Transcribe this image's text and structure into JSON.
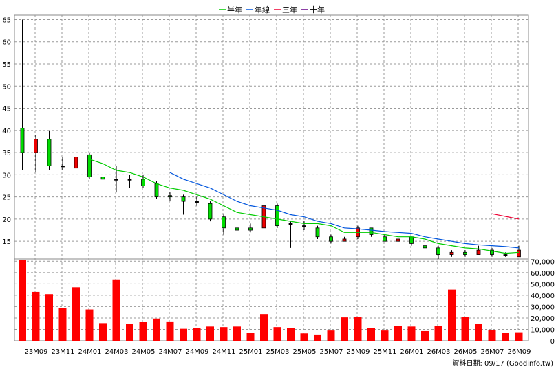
{
  "chart_data": {
    "type": "candlestick",
    "legend": [
      {
        "name": "半年",
        "color": "#00cc00"
      },
      {
        "name": "年線",
        "color": "#0055dd"
      },
      {
        "name": "三年",
        "color": "#ee0033"
      },
      {
        "name": "十年",
        "color": "#660088"
      }
    ],
    "legend_placement": "top-center",
    "grid": true,
    "price_axis": {
      "ticks": [
        65,
        60,
        55,
        50,
        45,
        40,
        35,
        30,
        25,
        20,
        15
      ],
      "range": [
        11,
        66
      ]
    },
    "volume_axis": {
      "ticks": [
        "70,000",
        "60,000",
        "50,000",
        "40,000",
        "30,000",
        "20,000",
        "10,000",
        "0"
      ],
      "range": [
        0,
        72000
      ]
    },
    "x_labels": [
      "23M09",
      "23M11",
      "24M01",
      "24M03",
      "24M05",
      "24M07",
      "24M09",
      "24M11",
      "25M01",
      "25M03",
      "25M05",
      "25M07",
      "25M09",
      "25M11",
      "26M01",
      "26M03",
      "26M05",
      "26M07",
      "26M09"
    ],
    "candles": [
      {
        "o": 35,
        "h": 65,
        "l": 31,
        "c": 40.5
      },
      {
        "o": 38,
        "h": 39,
        "l": 30.5,
        "c": 35
      },
      {
        "o": 32,
        "h": 40,
        "l": 31,
        "c": 38
      },
      {
        "o": 32,
        "h": 34,
        "l": 31,
        "c": 32
      },
      {
        "o": 34,
        "h": 36,
        "l": 31,
        "c": 31.5
      },
      {
        "o": 29.5,
        "h": 35,
        "l": 29,
        "c": 34.5
      },
      {
        "o": 29,
        "h": 30,
        "l": 28.5,
        "c": 29.5
      },
      {
        "o": 29,
        "h": 32,
        "l": 26,
        "c": 29
      },
      {
        "o": 29,
        "h": 30,
        "l": 27,
        "c": 29
      },
      {
        "o": 27.5,
        "h": 30,
        "l": 27,
        "c": 29
      },
      {
        "o": 25,
        "h": 28.5,
        "l": 24.5,
        "c": 28
      },
      {
        "o": 25,
        "h": 26,
        "l": 24,
        "c": 25.3
      },
      {
        "o": 24,
        "h": 25.5,
        "l": 21,
        "c": 25
      },
      {
        "o": 24,
        "h": 25,
        "l": 23,
        "c": 24
      },
      {
        "o": 20,
        "h": 24,
        "l": 19.5,
        "c": 23.5
      },
      {
        "o": 18,
        "h": 21,
        "l": 16.5,
        "c": 20.5
      },
      {
        "o": 17.5,
        "h": 19,
        "l": 17,
        "c": 18
      },
      {
        "o": 17.5,
        "h": 19,
        "l": 17,
        "c": 18
      },
      {
        "o": 23,
        "h": 25,
        "l": 17.5,
        "c": 18
      },
      {
        "o": 18.5,
        "h": 23.5,
        "l": 18,
        "c": 23
      },
      {
        "o": 19,
        "h": 19.5,
        "l": 13.5,
        "c": 19
      },
      {
        "o": 18.5,
        "h": 19.5,
        "l": 17.5,
        "c": 18.5
      },
      {
        "o": 16,
        "h": 18.5,
        "l": 15.5,
        "c": 18
      },
      {
        "o": 15,
        "h": 16.5,
        "l": 14.5,
        "c": 16
      },
      {
        "o": 15.5,
        "h": 16,
        "l": 15,
        "c": 15
      },
      {
        "o": 18,
        "h": 18.5,
        "l": 15.5,
        "c": 16
      },
      {
        "o": 16.5,
        "h": 18,
        "l": 16,
        "c": 18
      },
      {
        "o": 15,
        "h": 16.5,
        "l": 15,
        "c": 16
      },
      {
        "o": 15.5,
        "h": 16.5,
        "l": 14.5,
        "c": 15
      },
      {
        "o": 14.5,
        "h": 16,
        "l": 14,
        "c": 16
      },
      {
        "o": 13.5,
        "h": 14.5,
        "l": 13,
        "c": 14
      },
      {
        "o": 12,
        "h": 14,
        "l": 11,
        "c": 13.5
      },
      {
        "o": 12.5,
        "h": 13,
        "l": 11.5,
        "c": 12
      },
      {
        "o": 12,
        "h": 13,
        "l": 11.5,
        "c": 12.5
      },
      {
        "o": 13,
        "h": 14,
        "l": 12,
        "c": 12
      },
      {
        "o": 12,
        "h": 13.5,
        "l": 11.5,
        "c": 13
      },
      {
        "o": 12,
        "h": 12.5,
        "l": 11.5,
        "c": 12
      },
      {
        "o": 13,
        "h": 14,
        "l": 11.5,
        "c": 11.5
      }
    ],
    "volumes": [
      71000,
      43000,
      41000,
      28500,
      47000,
      27500,
      15500,
      54000,
      15000,
      16500,
      19500,
      17000,
      10500,
      11000,
      12500,
      12000,
      12500,
      7000,
      23500,
      12000,
      11000,
      6500,
      5500,
      9000,
      20500,
      21000,
      11000,
      9000,
      13000,
      12500,
      8500,
      13000,
      45000,
      21000,
      15000,
      9500,
      7000,
      7500
    ],
    "half_year_line": [
      [
        5,
        33.5
      ],
      [
        6,
        32.5
      ],
      [
        7,
        31
      ],
      [
        8,
        30.5
      ],
      [
        9,
        29.5
      ],
      [
        10,
        28
      ],
      [
        11,
        27
      ],
      [
        12,
        26.5
      ],
      [
        13,
        25.5
      ],
      [
        14,
        24.5
      ],
      [
        15,
        23
      ],
      [
        16,
        21.5
      ],
      [
        17,
        21
      ],
      [
        18,
        20.5
      ],
      [
        19,
        20
      ],
      [
        20,
        19.5
      ],
      [
        21,
        19
      ],
      [
        22,
        19
      ],
      [
        23,
        18.5
      ],
      [
        24,
        17
      ],
      [
        25,
        17
      ],
      [
        26,
        17
      ],
      [
        27,
        16.5
      ],
      [
        28,
        16
      ],
      [
        29,
        16
      ],
      [
        30,
        15.5
      ],
      [
        31,
        14.5
      ],
      [
        32,
        14
      ],
      [
        33,
        13.5
      ],
      [
        34,
        13.3
      ],
      [
        35,
        12.8
      ],
      [
        36,
        12.3
      ],
      [
        37,
        12.5
      ]
    ],
    "year_line": [
      [
        11,
        30.5
      ],
      [
        12,
        29
      ],
      [
        13,
        28
      ],
      [
        14,
        27
      ],
      [
        15,
        25.5
      ],
      [
        16,
        24
      ],
      [
        17,
        23
      ],
      [
        18,
        22.5
      ],
      [
        19,
        22
      ],
      [
        20,
        21
      ],
      [
        21,
        20.5
      ],
      [
        22,
        19.5
      ],
      [
        23,
        19
      ],
      [
        24,
        18
      ],
      [
        25,
        17.8
      ],
      [
        26,
        17.5
      ],
      [
        27,
        17.2
      ],
      [
        28,
        17
      ],
      [
        29,
        16.8
      ],
      [
        30,
        16
      ],
      [
        31,
        15.5
      ],
      [
        32,
        15
      ],
      [
        33,
        14.5
      ],
      [
        34,
        14.2
      ],
      [
        35,
        14
      ],
      [
        36,
        13.8
      ],
      [
        37,
        13.5
      ]
    ],
    "three_year_line": [
      [
        35,
        21.2
      ],
      [
        37,
        20
      ]
    ],
    "source_note": "資料日期: 09/17  (Goodinfo.tw)"
  }
}
